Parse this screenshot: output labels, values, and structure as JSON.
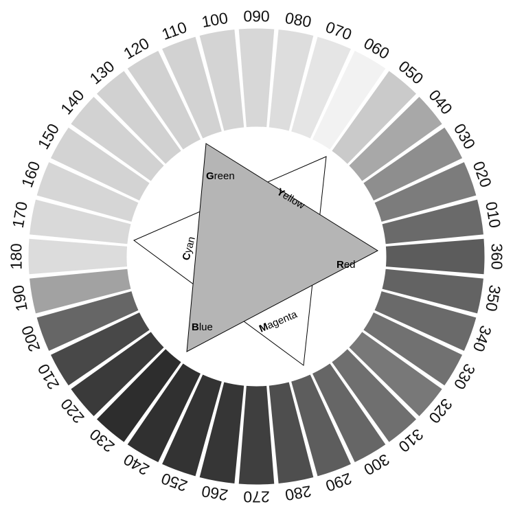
{
  "wheel": {
    "segments": [
      {
        "label": "360",
        "color": "#5c5c5c"
      },
      {
        "label": "350",
        "color": "#636363"
      },
      {
        "label": "340",
        "color": "#6a6a6a"
      },
      {
        "label": "330",
        "color": "#717171"
      },
      {
        "label": "320",
        "color": "#787878"
      },
      {
        "label": "310",
        "color": "#6f6f6f"
      },
      {
        "label": "300",
        "color": "#666666"
      },
      {
        "label": "290",
        "color": "#5d5d5d"
      },
      {
        "label": "280",
        "color": "#4e4e4e"
      },
      {
        "label": "270",
        "color": "#3f3f3f"
      },
      {
        "label": "260",
        "color": "#363636"
      },
      {
        "label": "250",
        "color": "#333333"
      },
      {
        "label": "240",
        "color": "#303030"
      },
      {
        "label": "230",
        "color": "#2d2d2d"
      },
      {
        "label": "220",
        "color": "#3a3a3a"
      },
      {
        "label": "210",
        "color": "#484848"
      },
      {
        "label": "200",
        "color": "#666666"
      },
      {
        "label": "190",
        "color": "#a2a2a2"
      },
      {
        "label": "180",
        "color": "#dcdcdc"
      },
      {
        "label": "170",
        "color": "#d9d9d9"
      },
      {
        "label": "160",
        "color": "#d6d6d6"
      },
      {
        "label": "150",
        "color": "#d3d3d3"
      },
      {
        "label": "140",
        "color": "#d2d2d2"
      },
      {
        "label": "130",
        "color": "#d1d1d1"
      },
      {
        "label": "120",
        "color": "#d1d1d1"
      },
      {
        "label": "110",
        "color": "#d2d2d2"
      },
      {
        "label": "100",
        "color": "#d4d4d4"
      },
      {
        "label": "090",
        "color": "#d7d7d7"
      },
      {
        "label": "080",
        "color": "#dddddd"
      },
      {
        "label": "070",
        "color": "#e5e5e5"
      },
      {
        "label": "060",
        "color": "#f2f2f2"
      },
      {
        "label": "050",
        "color": "#cacaca"
      },
      {
        "label": "040",
        "color": "#a8a8a8"
      },
      {
        "label": "030",
        "color": "#8e8e8e"
      },
      {
        "label": "020",
        "color": "#7c7c7c"
      },
      {
        "label": "010",
        "color": "#6a6a6a"
      }
    ]
  },
  "triangles": {
    "additive_fill": "#b5b5b5",
    "subtractive_fill": "#ffffff",
    "stroke": "#000000"
  },
  "labels": {
    "green": {
      "initial": "G",
      "rest": "reen"
    },
    "yellow": {
      "initial": "Y",
      "rest": "ellow"
    },
    "cyan": {
      "initial": "C",
      "rest": "yan"
    },
    "red": {
      "initial": "R",
      "rest": "ed"
    },
    "blue": {
      "initial": "B",
      "rest": "lue"
    },
    "magenta": {
      "initial": "M",
      "rest": "agenta"
    }
  }
}
